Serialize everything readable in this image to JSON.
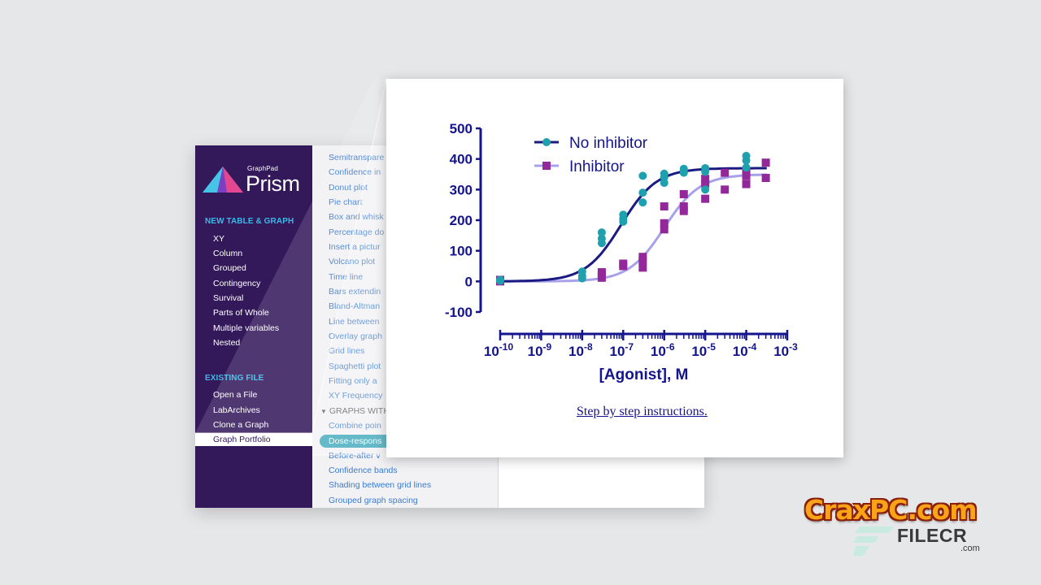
{
  "logo": {
    "small": "GraphPad",
    "big": "Prism"
  },
  "sidebar": {
    "new_heading": "NEW TABLE & GRAPH",
    "new_items": [
      "XY",
      "Column",
      "Grouped",
      "Contingency",
      "Survival",
      "Parts of Whole",
      "Multiple variables",
      "Nested"
    ],
    "existing_heading": "EXISTING FILE",
    "existing_items": [
      "Open a File",
      "LabArchives",
      "Clone a Graph",
      "Graph Portfolio"
    ]
  },
  "list": {
    "items_top": [
      "Semitranspare",
      "Confidence in",
      "Donut plot",
      "Pie chart",
      "Box and whisk",
      "Percentage do",
      "Insert a pictur",
      "Volcano plot",
      "Time line",
      "Bars extendin",
      "Bland-Altman",
      "Line between",
      "Overlay graph",
      "Grid lines",
      "Spaghetti plot",
      "Fitting only a",
      "XY Frequency"
    ],
    "group_heading": "GRAPHS WITH",
    "item_after_head": "Combine poin",
    "selected": "Dose-respons",
    "items_bottom": [
      "Before-after v",
      "Confidence bands",
      "Shading between grid lines",
      "Grouped graph spacing"
    ]
  },
  "panel": {
    "link_text": "Step by step instructions",
    "link_period": "."
  },
  "watermark": {
    "main": "CraxPC.com",
    "sub": "FILECR",
    "com": ".com"
  },
  "colors": {
    "sidebar": "#33185a",
    "no_inhibitor": "#1fa0ae",
    "no_inhibitor_line": "#1a1a82",
    "inhibitor": "#93289a",
    "inhibitor_line": "#a7a0ea",
    "axis": "#14148c"
  },
  "chart_data": {
    "type": "scatter",
    "xlabel": "[Agonist], M",
    "ylabel": "",
    "x_scale": "log",
    "xlim": [
      1e-10,
      0.001
    ],
    "ylim": [
      -100,
      500
    ],
    "y_ticks": [
      500,
      400,
      300,
      200,
      100,
      0,
      -100
    ],
    "x_tick_bases": [
      "10",
      "10",
      "10",
      "10",
      "10",
      "10",
      "10",
      "10"
    ],
    "x_tick_exponents": [
      "-10",
      "-9",
      "-8",
      "-7",
      "-6",
      "-5",
      "-4",
      "-3"
    ],
    "legend_position": "top-left",
    "series": [
      {
        "name": "No inhibitor",
        "marker": "circle",
        "curve": {
          "bottom": 0,
          "top": 370,
          "logEC50": -7.05,
          "hill": 1
        },
        "points": [
          [
            1e-10,
            5
          ],
          [
            1e-10,
            2
          ],
          [
            1e-08,
            10
          ],
          [
            1e-08,
            18
          ],
          [
            1e-08,
            32
          ],
          [
            3e-08,
            125
          ],
          [
            3e-08,
            140
          ],
          [
            3e-08,
            160
          ],
          [
            1e-07,
            195
          ],
          [
            1e-07,
            205
          ],
          [
            1e-07,
            218
          ],
          [
            3e-07,
            258
          ],
          [
            3e-07,
            290
          ],
          [
            3e-07,
            345
          ],
          [
            1e-06,
            322
          ],
          [
            1e-06,
            340
          ],
          [
            1e-06,
            352
          ],
          [
            3e-06,
            355
          ],
          [
            3e-06,
            362
          ],
          [
            3e-06,
            368
          ],
          [
            1e-05,
            300
          ],
          [
            1e-05,
            358
          ],
          [
            1e-05,
            370
          ],
          [
            0.0001,
            372
          ],
          [
            0.0001,
            395
          ],
          [
            0.0001,
            410
          ]
        ]
      },
      {
        "name": "Inhibitor",
        "marker": "square",
        "curve": {
          "bottom": 0,
          "top": 350,
          "logEC50": -6.0,
          "hill": 1
        },
        "points": [
          [
            1e-10,
            5
          ],
          [
            1e-10,
            0
          ],
          [
            3e-08,
            12
          ],
          [
            3e-08,
            22
          ],
          [
            3e-08,
            30
          ],
          [
            1e-07,
            50
          ],
          [
            1e-07,
            58
          ],
          [
            3e-07,
            45
          ],
          [
            3e-07,
            68
          ],
          [
            3e-07,
            80
          ],
          [
            1e-06,
            170
          ],
          [
            1e-06,
            190
          ],
          [
            1e-06,
            245
          ],
          [
            3e-06,
            230
          ],
          [
            3e-06,
            245
          ],
          [
            3e-06,
            285
          ],
          [
            1e-05,
            270
          ],
          [
            1e-05,
            320
          ],
          [
            1e-05,
            335
          ],
          [
            3e-05,
            300
          ],
          [
            3e-05,
            355
          ],
          [
            0.0001,
            318
          ],
          [
            0.0001,
            345
          ],
          [
            0.0001,
            360
          ],
          [
            0.0003,
            338
          ],
          [
            0.0003,
            388
          ]
        ]
      }
    ]
  }
}
